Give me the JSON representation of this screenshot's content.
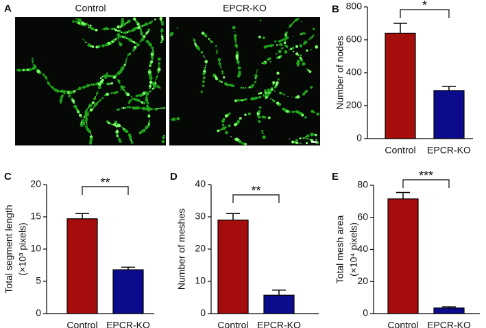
{
  "panel_a": {
    "label": "A",
    "images": [
      "Control",
      "EPCR-KO"
    ]
  },
  "chart_data": [
    {
      "type": "bar",
      "panel": "B",
      "ylabel": [
        "Number of nodes"
      ],
      "categories": [
        "Control",
        "EPCR-KO"
      ],
      "values": [
        640,
        292
      ],
      "errors": [
        60,
        25
      ],
      "colors": [
        "#a50d0d",
        "#0b0b8c"
      ],
      "ylim": [
        0,
        800
      ],
      "yticks": [
        0,
        200,
        400,
        600,
        800
      ],
      "significance": "*"
    },
    {
      "type": "bar",
      "panel": "C",
      "ylabel": [
        "Total segment length",
        "(×10³ pixels)"
      ],
      "categories": [
        "Control",
        "EPCR-KO"
      ],
      "values": [
        14.7,
        6.8
      ],
      "errors": [
        0.8,
        0.4
      ],
      "colors": [
        "#a50d0d",
        "#0b0b8c"
      ],
      "ylim": [
        0,
        20
      ],
      "yticks": [
        0,
        5,
        10,
        15,
        20
      ],
      "significance": "**"
    },
    {
      "type": "bar",
      "panel": "D",
      "ylabel": [
        "Number of meshes"
      ],
      "categories": [
        "Control",
        "EPCR-KO"
      ],
      "values": [
        29,
        5.7
      ],
      "errors": [
        2,
        1.6
      ],
      "colors": [
        "#a50d0d",
        "#0b0b8c"
      ],
      "ylim": [
        0,
        40
      ],
      "yticks": [
        0,
        10,
        20,
        30,
        40
      ],
      "significance": "**"
    },
    {
      "type": "bar",
      "panel": "E",
      "ylabel": [
        "Total mesh area",
        "(×10⁴ pixels)"
      ],
      "categories": [
        "Control",
        "EPCR-KO"
      ],
      "values": [
        71.5,
        3.5
      ],
      "errors": [
        4,
        0.7
      ],
      "colors": [
        "#a50d0d",
        "#0b0b8c"
      ],
      "ylim": [
        0,
        80
      ],
      "yticks": [
        0,
        20,
        40,
        60,
        80
      ],
      "significance": "***"
    }
  ]
}
